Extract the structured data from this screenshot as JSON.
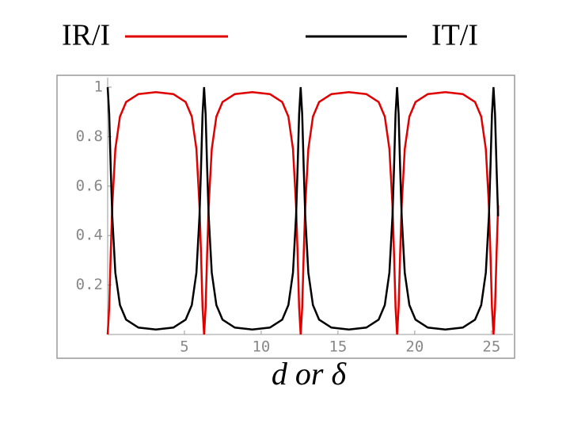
{
  "chart_data": {
    "type": "line",
    "xlabel": "d or δ",
    "x": [
      0,
      0.1,
      0.2,
      0.3,
      0.5,
      0.8,
      1.2,
      2,
      3.14,
      4.28,
      5.08,
      5.48,
      5.78,
      5.98,
      6.08,
      6.18,
      6.28,
      6.38,
      6.48,
      6.58,
      6.78,
      7.08,
      7.48,
      8.28,
      9.42,
      10.57,
      11.37,
      11.77,
      12.07,
      12.27,
      12.37,
      12.47,
      12.57,
      12.67,
      12.77,
      12.87,
      13.07,
      13.37,
      13.77,
      14.57,
      15.71,
      16.85,
      17.65,
      18.05,
      18.35,
      18.55,
      18.65,
      18.75,
      18.85,
      18.95,
      19.05,
      19.15,
      19.35,
      19.65,
      20.05,
      20.85,
      21.99,
      23.13,
      23.93,
      24.33,
      24.63,
      24.83,
      24.93,
      25.03,
      25.13,
      25.23,
      25.33,
      25.43
    ],
    "series": [
      {
        "name": "IR/I",
        "color": "#e00000",
        "values": [
          0,
          0.109,
          0.328,
          0.522,
          0.75,
          0.881,
          0.94,
          0.972,
          0.98,
          0.972,
          0.94,
          0.881,
          0.75,
          0.522,
          0.328,
          0.109,
          0,
          0.109,
          0.328,
          0.522,
          0.75,
          0.881,
          0.94,
          0.972,
          0.98,
          0.972,
          0.94,
          0.881,
          0.75,
          0.522,
          0.328,
          0.109,
          0,
          0.109,
          0.328,
          0.522,
          0.75,
          0.881,
          0.94,
          0.972,
          0.98,
          0.972,
          0.94,
          0.881,
          0.75,
          0.522,
          0.328,
          0.109,
          0,
          0.109,
          0.328,
          0.522,
          0.75,
          0.881,
          0.94,
          0.972,
          0.98,
          0.972,
          0.94,
          0.881,
          0.75,
          0.522,
          0.328,
          0.109,
          0,
          0.109,
          0.328,
          0.522
        ]
      },
      {
        "name": "IT/I",
        "color": "#000000",
        "values": [
          1,
          0.891,
          0.672,
          0.478,
          0.25,
          0.119,
          0.06,
          0.028,
          0.02,
          0.028,
          0.06,
          0.119,
          0.25,
          0.478,
          0.672,
          0.891,
          1,
          0.891,
          0.672,
          0.478,
          0.25,
          0.119,
          0.06,
          0.028,
          0.02,
          0.028,
          0.06,
          0.119,
          0.25,
          0.478,
          0.672,
          0.891,
          1,
          0.891,
          0.672,
          0.478,
          0.25,
          0.119,
          0.06,
          0.028,
          0.02,
          0.028,
          0.06,
          0.119,
          0.25,
          0.478,
          0.672,
          0.891,
          1,
          0.891,
          0.672,
          0.478,
          0.25,
          0.119,
          0.06,
          0.028,
          0.02,
          0.028,
          0.06,
          0.119,
          0.25,
          0.478,
          0.672,
          0.891,
          1,
          0.891,
          0.672,
          0.478
        ]
      }
    ],
    "xlim": [
      0,
      26.4
    ],
    "ylim": [
      0,
      1
    ],
    "xticks": [
      5,
      10,
      15,
      20,
      25
    ],
    "yticks": [
      0.2,
      0.4,
      0.6,
      0.8,
      1
    ]
  }
}
